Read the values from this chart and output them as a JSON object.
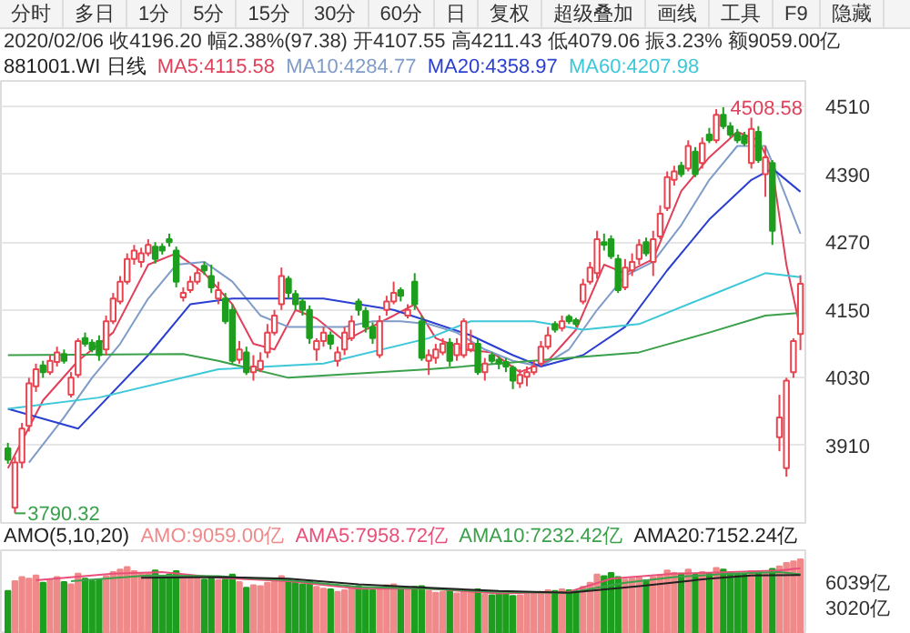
{
  "chart_data": [
    {
      "type": "other",
      "annotations": [
        "分时",
        "多日",
        "1分",
        "5分",
        "15分",
        "30分",
        "60分",
        "日",
        "复权",
        "超级叠加",
        "画线",
        "工具",
        "F9",
        "隐藏"
      ]
    },
    {
      "type": "candlestick",
      "title": "881001.WI 日线",
      "subtitle": "2020/02/06 收4196.20 幅2.38%(97.38) 开4107.55 高4211.43 低4079.06 振3.23% 额9059.00亿",
      "categories": [
        null,
        null,
        null,
        null,
        null,
        null,
        null,
        null,
        null,
        null,
        null,
        null,
        null,
        null,
        null,
        null,
        null,
        null,
        null,
        null,
        null,
        null,
        null,
        null,
        null,
        null,
        null,
        null,
        null,
        null,
        null,
        null,
        null,
        null,
        null,
        null,
        null,
        null,
        null,
        null,
        null,
        null,
        null,
        null,
        null,
        null,
        null,
        null,
        null,
        null,
        null,
        null,
        null,
        null,
        null,
        null,
        null,
        null,
        null,
        null,
        null,
        null,
        null,
        null,
        null,
        null,
        null,
        null,
        null,
        null,
        null,
        null,
        null,
        null,
        null,
        null,
        null,
        null,
        null,
        null,
        null,
        null,
        null,
        null,
        null,
        null,
        null,
        null,
        null,
        null,
        null,
        null,
        null,
        null,
        null,
        null,
        null,
        null,
        null,
        null,
        null,
        null,
        null,
        null,
        null,
        null,
        null,
        null,
        null,
        null,
        null,
        null,
        null,
        null
      ],
      "ohlc": [
        [
          3905,
          3915,
          3878,
          3885
        ],
        [
          3800,
          3890,
          3790.32,
          3880
        ],
        [
          3880,
          3950,
          3870,
          3940
        ],
        [
          3945,
          4030,
          3935,
          4020
        ],
        [
          4015,
          4055,
          4005,
          4045
        ],
        [
          4052,
          4060,
          4030,
          4040
        ],
        [
          4040,
          4070,
          4035,
          4060
        ],
        [
          4058,
          4085,
          4050,
          4075
        ],
        [
          4072,
          4080,
          4055,
          4060
        ],
        [
          4000,
          4040,
          3995,
          4030
        ],
        [
          4035,
          4100,
          4030,
          4095
        ],
        [
          4100,
          4110,
          4085,
          4090
        ],
        [
          4092,
          4098,
          4075,
          4080
        ],
        [
          4095,
          4105,
          4060,
          4070
        ],
        [
          4080,
          4140,
          4070,
          4130
        ],
        [
          4130,
          4180,
          4125,
          4170
        ],
        [
          4165,
          4210,
          4160,
          4200
        ],
        [
          4200,
          4250,
          4195,
          4240
        ],
        [
          4240,
          4265,
          4230,
          4255
        ],
        [
          4235,
          4260,
          4225,
          4250
        ],
        [
          4250,
          4275,
          4245,
          4265
        ],
        [
          4262,
          4270,
          4232,
          4240
        ],
        [
          4262,
          4268,
          4248,
          4255
        ],
        [
          4275,
          4285,
          4262,
          4270
        ],
        [
          4255,
          4262,
          4190,
          4200
        ],
        [
          4172,
          4190,
          4165,
          4180
        ],
        [
          4185,
          4210,
          4180,
          4200
        ],
        [
          4200,
          4225,
          4195,
          4215
        ],
        [
          4228,
          4235,
          4212,
          4220
        ],
        [
          4210,
          4230,
          4180,
          4190
        ],
        [
          4170,
          4200,
          4160,
          4185
        ],
        [
          4170,
          4180,
          4125,
          4130
        ],
        [
          4150,
          4160,
          4055,
          4060
        ],
        [
          4062,
          4095,
          4055,
          4080
        ],
        [
          4075,
          4085,
          4035,
          4040
        ],
        [
          4040,
          4070,
          4025,
          4050
        ],
        [
          4045,
          4075,
          4040,
          4060
        ],
        [
          4075,
          4125,
          4065,
          4110
        ],
        [
          4110,
          4150,
          4105,
          4140
        ],
        [
          4160,
          4225,
          4150,
          4210
        ],
        [
          4205,
          4210,
          4170,
          4180
        ],
        [
          4178,
          4185,
          4150,
          4160
        ],
        [
          4165,
          4170,
          4140,
          4150
        ],
        [
          4150,
          4158,
          4090,
          4100
        ],
        [
          4080,
          4100,
          4060,
          4095
        ],
        [
          4095,
          4120,
          4085,
          4110
        ],
        [
          4105,
          4112,
          4080,
          4090
        ],
        [
          4060,
          4085,
          4050,
          4075
        ],
        [
          4080,
          4120,
          4070,
          4110
        ],
        [
          4100,
          4140,
          4095,
          4130
        ],
        [
          4165,
          4170,
          4140,
          4150
        ],
        [
          4148,
          4155,
          4110,
          4120
        ],
        [
          4120,
          4128,
          4090,
          4100
        ],
        [
          4070,
          4140,
          4065,
          4130
        ],
        [
          4150,
          4175,
          4140,
          4165
        ],
        [
          4165,
          4200,
          4160,
          4180
        ],
        [
          4185,
          4190,
          4165,
          4175
        ],
        [
          4140,
          4160,
          4135,
          4150
        ],
        [
          4200,
          4215,
          4150,
          4160
        ],
        [
          4130,
          4140,
          4060,
          4065
        ],
        [
          4060,
          4080,
          4035,
          4070
        ],
        [
          4065,
          4090,
          4055,
          4080
        ],
        [
          4075,
          4100,
          4070,
          4090
        ],
        [
          4092,
          4100,
          4050,
          4060
        ],
        [
          4070,
          4100,
          4060,
          4090
        ],
        [
          4070,
          4135,
          4065,
          4130
        ],
        [
          4080,
          4115,
          4075,
          4090
        ],
        [
          4090,
          4098,
          4035,
          4040
        ],
        [
          4040,
          4065,
          4025,
          4055
        ],
        [
          4070,
          4075,
          4055,
          4060
        ],
        [
          4062,
          4068,
          4045,
          4055
        ],
        [
          4058,
          4065,
          4040,
          4050
        ],
        [
          4048,
          4052,
          4010,
          4025
        ],
        [
          4020,
          4045,
          4012,
          4035
        ],
        [
          4032,
          4050,
          4015,
          4040
        ],
        [
          4040,
          4060,
          4035,
          4050
        ],
        [
          4055,
          4095,
          4050,
          4085
        ],
        [
          4085,
          4120,
          4080,
          4105
        ],
        [
          4125,
          4130,
          4110,
          4115
        ],
        [
          4118,
          4140,
          4112,
          4130
        ],
        [
          4138,
          4142,
          4125,
          4130
        ],
        [
          4132,
          4136,
          4120,
          4125
        ],
        [
          4165,
          4205,
          4160,
          4195
        ],
        [
          4200,
          4235,
          4195,
          4225
        ],
        [
          4215,
          4290,
          4205,
          4275
        ],
        [
          4270,
          4285,
          4255,
          4265
        ],
        [
          4275,
          4282,
          4240,
          4245
        ],
        [
          4240,
          4248,
          4180,
          4185
        ],
        [
          4190,
          4240,
          4185,
          4225
        ],
        [
          4220,
          4250,
          4210,
          4235
        ],
        [
          4240,
          4275,
          4230,
          4265
        ],
        [
          4270,
          4278,
          4245,
          4250
        ],
        [
          4235,
          4290,
          4210,
          4275
        ],
        [
          4280,
          4335,
          4275,
          4320
        ],
        [
          4330,
          4395,
          4325,
          4385
        ],
        [
          4380,
          4405,
          4370,
          4395
        ],
        [
          4405,
          4412,
          4385,
          4390
        ],
        [
          4400,
          4450,
          4395,
          4440
        ],
        [
          4430,
          4438,
          4385,
          4390
        ],
        [
          4410,
          4455,
          4400,
          4445
        ],
        [
          4460,
          4472,
          4445,
          4450
        ],
        [
          4450,
          4505,
          4445,
          4495
        ],
        [
          4495,
          4508.58,
          4470,
          4475
        ],
        [
          4475,
          4482,
          4455,
          4460
        ],
        [
          4462,
          4470,
          4445,
          4450
        ],
        [
          4458,
          4465,
          4440,
          4445
        ],
        [
          4410,
          4490,
          4400,
          4470
        ],
        [
          4465,
          4475,
          4410,
          4415
        ],
        [
          4390,
          4440,
          4350,
          4420
        ],
        [
          4410,
          4415,
          4265,
          4290
        ],
        [
          3925,
          4000,
          3900,
          3960
        ],
        [
          3870,
          4030,
          3855,
          4025
        ],
        [
          4040,
          4100,
          4030,
          4095
        ],
        [
          4107.55,
          4211.43,
          4079.06,
          4196.2
        ]
      ],
      "colors": [
        "#1e9e1e",
        "#e8434f",
        "#e8434f",
        "#e8434f",
        "#e8434f",
        "#1e9e1e",
        "#e8434f",
        "#e8434f",
        "#1e9e1e",
        "#e8434f",
        "#e8434f",
        "#1e9e1e",
        "#1e9e1e",
        "#1e9e1e",
        "#e8434f",
        "#e8434f",
        "#e8434f",
        "#e8434f",
        "#e8434f",
        "#e8434f",
        "#e8434f",
        "#1e9e1e",
        "#1e9e1e",
        "#1e9e1e",
        "#1e9e1e",
        "#e8434f",
        "#e8434f",
        "#e8434f",
        "#1e9e1e",
        "#1e9e1e",
        "#e8434f",
        "#1e9e1e",
        "#1e9e1e",
        "#e8434f",
        "#1e9e1e",
        "#e8434f",
        "#e8434f",
        "#e8434f",
        "#e8434f",
        "#e8434f",
        "#1e9e1e",
        "#1e9e1e",
        "#1e9e1e",
        "#1e9e1e",
        "#e8434f",
        "#e8434f",
        "#1e9e1e",
        "#e8434f",
        "#e8434f",
        "#e8434f",
        "#1e9e1e",
        "#1e9e1e",
        "#1e9e1e",
        "#e8434f",
        "#e8434f",
        "#e8434f",
        "#1e9e1e",
        "#e8434f",
        "#1e9e1e",
        "#1e9e1e",
        "#e8434f",
        "#e8434f",
        "#e8434f",
        "#1e9e1e",
        "#e8434f",
        "#e8434f",
        "#e8434f",
        "#1e9e1e",
        "#e8434f",
        "#1e9e1e",
        "#1e9e1e",
        "#1e9e1e",
        "#1e9e1e",
        "#e8434f",
        "#e8434f",
        "#e8434f",
        "#e8434f",
        "#e8434f",
        "#1e9e1e",
        "#e8434f",
        "#1e9e1e",
        "#1e9e1e",
        "#e8434f",
        "#e8434f",
        "#e8434f",
        "#1e9e1e",
        "#1e9e1e",
        "#1e9e1e",
        "#e8434f",
        "#e8434f",
        "#e8434f",
        "#1e9e1e",
        "#e8434f",
        "#e8434f",
        "#e8434f",
        "#e8434f",
        "#1e9e1e",
        "#e8434f",
        "#1e9e1e",
        "#e8434f",
        "#1e9e1e",
        "#e8434f",
        "#1e9e1e",
        "#1e9e1e",
        "#1e9e1e",
        "#1e9e1e",
        "#e8434f",
        "#1e9e1e",
        "#e8434f",
        "#1e9e1e",
        "#e8434f",
        "#e8434f",
        "#e8434f",
        "#e8434f"
      ],
      "series": [
        {
          "name": "MA5:4115.58",
          "type": "line",
          "color": "#e0405a",
          "values": [
            3870,
            null,
            null,
            null,
            null,
            3990,
            null,
            null,
            null,
            null,
            4060,
            null,
            null,
            null,
            null,
            4110,
            null,
            null,
            null,
            null,
            4230,
            null,
            null,
            null,
            4250,
            null,
            null,
            null,
            4215,
            null,
            null,
            null,
            4160,
            null,
            null,
            4090,
            null,
            null,
            4080,
            null,
            null,
            4150,
            null,
            null,
            4135,
            null,
            null,
            null,
            4095,
            null,
            null,
            4115,
            null,
            null,
            null,
            4140,
            null,
            null,
            4160,
            null,
            null,
            4100,
            null,
            null,
            null,
            4080,
            null,
            null,
            null,
            4075,
            null,
            null,
            null,
            4040,
            null,
            null,
            null,
            4060,
            null,
            null,
            null,
            4115,
            null,
            null,
            null,
            4230,
            null,
            null,
            4215,
            null,
            null,
            null,
            4240,
            null,
            null,
            null,
            4360,
            null,
            null,
            null,
            4420,
            null,
            null,
            null,
            4465,
            null,
            null,
            4450,
            null,
            4400,
            null,
            4230,
            null,
            4115.58
          ]
        },
        {
          "name": "MA10:4284.77",
          "type": "line",
          "color": "#7f9cc8",
          "values": [
            null,
            null,
            null,
            3880,
            null,
            null,
            null,
            null,
            3960,
            null,
            null,
            null,
            4030,
            null,
            null,
            null,
            4090,
            null,
            null,
            null,
            4170,
            null,
            null,
            null,
            4230,
            null,
            null,
            null,
            4235,
            null,
            null,
            null,
            4200,
            null,
            null,
            null,
            4140,
            null,
            null,
            null,
            4120,
            null,
            null,
            null,
            4120,
            null,
            null,
            null,
            4120,
            null,
            null,
            null,
            4130,
            null,
            null,
            null,
            4130,
            null,
            null,
            null,
            4125,
            null,
            null,
            null,
            4110,
            null,
            null,
            null,
            4080,
            null,
            null,
            null,
            4060,
            null,
            null,
            null,
            4050,
            null,
            null,
            null,
            4080,
            null,
            null,
            null,
            4150,
            null,
            null,
            null,
            4210,
            null,
            null,
            null,
            4235,
            null,
            null,
            null,
            4300,
            null,
            null,
            null,
            4380,
            null,
            null,
            null,
            4440,
            null,
            null,
            null,
            4440,
            null,
            4380,
            null,
            null,
            4284.77
          ]
        },
        {
          "name": "MA20:4358.97",
          "type": "line",
          "color": "#2a3fd0",
          "values": [
            3975,
            null,
            null,
            null,
            null,
            null,
            null,
            null,
            null,
            null,
            3940,
            null,
            null,
            null,
            null,
            null,
            null,
            null,
            null,
            null,
            4070,
            null,
            null,
            null,
            null,
            null,
            4160,
            null,
            null,
            null,
            null,
            null,
            4170,
            null,
            null,
            null,
            null,
            null,
            null,
            null,
            null,
            null,
            null,
            null,
            null,
            4170,
            null,
            null,
            null,
            null,
            null,
            null,
            null,
            null,
            null,
            4150,
            null,
            null,
            null,
            null,
            4130,
            null,
            null,
            null,
            null,
            null,
            4105,
            null,
            null,
            null,
            null,
            null,
            4070,
            null,
            null,
            null,
            4050,
            null,
            null,
            null,
            null,
            null,
            4070,
            null,
            null,
            null,
            null,
            null,
            4120,
            null,
            null,
            null,
            null,
            null,
            4220,
            null,
            null,
            null,
            null,
            null,
            4310,
            null,
            null,
            null,
            null,
            null,
            4380,
            null,
            null,
            4400,
            null,
            null,
            null,
            4358.97
          ]
        },
        {
          "name": "MA60:4207.98",
          "type": "line",
          "color": "#3cc8d8",
          "values": [
            3975,
            null,
            null,
            null,
            null,
            null,
            null,
            null,
            null,
            null,
            null,
            null,
            null,
            3995,
            null,
            null,
            null,
            null,
            null,
            null,
            null,
            null,
            null,
            null,
            null,
            null,
            null,
            null,
            null,
            null,
            4045,
            null,
            null,
            null,
            null,
            null,
            null,
            null,
            null,
            null,
            null,
            null,
            null,
            null,
            null,
            4055,
            null,
            null,
            null,
            null,
            null,
            null,
            null,
            null,
            null,
            null,
            null,
            null,
            null,
            null,
            4100,
            null,
            null,
            null,
            null,
            null,
            4130,
            null,
            null,
            null,
            null,
            null,
            null,
            null,
            null,
            4130,
            null,
            null,
            null,
            null,
            null,
            null,
            4115,
            null,
            null,
            null,
            null,
            null,
            null,
            null,
            4125,
            null,
            null,
            null,
            null,
            null,
            null,
            null,
            null,
            null,
            4175,
            null,
            null,
            null,
            null,
            null,
            null,
            null,
            4215,
            null,
            null,
            null,
            null,
            4207.98
          ]
        },
        {
          "type": "line",
          "color": "#3aa04a",
          "values": [
            4070,
            null,
            null,
            null,
            null,
            null,
            null,
            null,
            null,
            null,
            null,
            null,
            null,
            null,
            null,
            null,
            null,
            null,
            null,
            null,
            null,
            null,
            null,
            null,
            null,
            4072,
            null,
            null,
            null,
            null,
            4060,
            null,
            null,
            null,
            null,
            null,
            null,
            null,
            null,
            null,
            4030,
            null,
            null,
            null,
            null,
            null,
            null,
            null,
            null,
            null,
            null,
            null,
            null,
            null,
            null,
            null,
            null,
            null,
            null,
            null,
            4045,
            null,
            null,
            null,
            null,
            null,
            null,
            null,
            null,
            null,
            4055,
            null,
            null,
            null,
            null,
            null,
            null,
            null,
            null,
            null,
            4065,
            null,
            null,
            null,
            null,
            null,
            null,
            null,
            null,
            null,
            4075,
            null,
            null,
            null,
            null,
            null,
            null,
            null,
            null,
            null,
            4110,
            null,
            null,
            null,
            null,
            null,
            null,
            null,
            4140,
            null,
            null,
            null,
            null,
            4145
          ]
        }
      ],
      "ylim": [
        3770,
        4555
      ],
      "yticks": [
        3910,
        4030,
        4150,
        4270,
        4390,
        4510
      ],
      "grid": "y",
      "legend": "top left",
      "annotations": [
        "4508.58",
        "3790.32"
      ]
    },
    {
      "type": "bar",
      "title": "AMO(5,10,20)",
      "categories": [
        null,
        null,
        null,
        null,
        null,
        null,
        null,
        null,
        null,
        null,
        null,
        null,
        null,
        null,
        null,
        null,
        null,
        null,
        null,
        null,
        null,
        null,
        null,
        null,
        null,
        null,
        null,
        null,
        null,
        null,
        null,
        null,
        null,
        null,
        null,
        null,
        null,
        null,
        null,
        null,
        null,
        null,
        null,
        null,
        null,
        null,
        null,
        null,
        null,
        null,
        null,
        null,
        null,
        null,
        null,
        null,
        null,
        null,
        null,
        null,
        null,
        null,
        null,
        null,
        null,
        null,
        null,
        null,
        null,
        null,
        null,
        null,
        null,
        null,
        null,
        null,
        null,
        null,
        null,
        null,
        null,
        null,
        null,
        null,
        null,
        null,
        null,
        null,
        null,
        null,
        null,
        null,
        null,
        null,
        null,
        null,
        null,
        null,
        null,
        null,
        null,
        null,
        null,
        null,
        null,
        null,
        null,
        null,
        null,
        null,
        null,
        null,
        null,
        null
      ],
      "series": [
        {
          "name": "AMO:9059.00亿",
          "type": "bar",
          "color": "#f08a8a",
          "values": [
            5200,
            6400,
            6900,
            6700,
            7100,
            6200,
            6500,
            6900,
            6300,
            6000,
            7300,
            6700,
            6400,
            6600,
            7000,
            7500,
            7800,
            8100,
            7600,
            7300,
            7400,
            7700,
            6900,
            7200,
            7600,
            6800,
            6900,
            7000,
            6600,
            6800,
            6500,
            6600,
            7200,
            6300,
            5600,
            5900,
            5800,
            6200,
            6400,
            7000,
            6600,
            6200,
            6000,
            6400,
            5700,
            5500,
            5400,
            5100,
            5300,
            5600,
            5800,
            5500,
            5300,
            5600,
            5900,
            6000,
            5600,
            5400,
            5700,
            5800,
            5200,
            5000,
            5100,
            5300,
            4900,
            5200,
            5100,
            5400,
            4800,
            4700,
            4900,
            4800,
            4600,
            4700,
            4800,
            4900,
            5100,
            5300,
            5200,
            5400,
            5300,
            5200,
            5700,
            6200,
            7200,
            7000,
            7400,
            6900,
            6600,
            6700,
            6800,
            6500,
            6900,
            7100,
            7700,
            7400,
            7300,
            7800,
            7200,
            7500,
            7300,
            8000,
            7800,
            7400,
            7300,
            7200,
            7600,
            7500,
            7400,
            7900,
            8200,
            8600,
            8800,
            9059
          ],
          "colors": [
            "#1e9e1e",
            "#f08a8a",
            "#f08a8a",
            "#f08a8a",
            "#f08a8a",
            "#1e9e1e",
            "#f08a8a",
            "#f08a8a",
            "#1e9e1e",
            "#f08a8a",
            "#f08a8a",
            "#1e9e1e",
            "#1e9e1e",
            "#1e9e1e",
            "#f08a8a",
            "#f08a8a",
            "#f08a8a",
            "#f08a8a",
            "#f08a8a",
            "#f08a8a",
            "#f08a8a",
            "#1e9e1e",
            "#1e9e1e",
            "#1e9e1e",
            "#1e9e1e",
            "#f08a8a",
            "#f08a8a",
            "#f08a8a",
            "#1e9e1e",
            "#1e9e1e",
            "#f08a8a",
            "#1e9e1e",
            "#1e9e1e",
            "#f08a8a",
            "#1e9e1e",
            "#f08a8a",
            "#f08a8a",
            "#f08a8a",
            "#f08a8a",
            "#f08a8a",
            "#1e9e1e",
            "#1e9e1e",
            "#1e9e1e",
            "#1e9e1e",
            "#f08a8a",
            "#f08a8a",
            "#1e9e1e",
            "#f08a8a",
            "#f08a8a",
            "#f08a8a",
            "#1e9e1e",
            "#1e9e1e",
            "#1e9e1e",
            "#f08a8a",
            "#f08a8a",
            "#f08a8a",
            "#1e9e1e",
            "#f08a8a",
            "#1e9e1e",
            "#1e9e1e",
            "#f08a8a",
            "#f08a8a",
            "#f08a8a",
            "#1e9e1e",
            "#f08a8a",
            "#f08a8a",
            "#f08a8a",
            "#1e9e1e",
            "#f08a8a",
            "#1e9e1e",
            "#1e9e1e",
            "#1e9e1e",
            "#1e9e1e",
            "#f08a8a",
            "#f08a8a",
            "#f08a8a",
            "#f08a8a",
            "#f08a8a",
            "#1e9e1e",
            "#f08a8a",
            "#1e9e1e",
            "#1e9e1e",
            "#f08a8a",
            "#f08a8a",
            "#f08a8a",
            "#1e9e1e",
            "#1e9e1e",
            "#1e9e1e",
            "#f08a8a",
            "#f08a8a",
            "#f08a8a",
            "#1e9e1e",
            "#f08a8a",
            "#f08a8a",
            "#f08a8a",
            "#f08a8a",
            "#1e9e1e",
            "#f08a8a",
            "#1e9e1e",
            "#f08a8a",
            "#1e9e1e",
            "#f08a8a",
            "#1e9e1e",
            "#1e9e1e",
            "#1e9e1e",
            "#1e9e1e",
            "#f08a8a",
            "#1e9e1e",
            "#f08a8a",
            "#1e9e1e",
            "#f08a8a",
            "#f08a8a",
            "#f08a8a",
            "#f08a8a"
          ]
        },
        {
          "name": "AMA5:7958.72亿",
          "type": "line",
          "color": "#e8507a",
          "values": [
            null,
            null,
            null,
            null,
            6500,
            null,
            null,
            null,
            null,
            null,
            null,
            null,
            null,
            null,
            null,
            7300,
            null,
            null,
            null,
            null,
            null,
            null,
            7500,
            null,
            null,
            null,
            null,
            null,
            null,
            null,
            6800,
            null,
            null,
            null,
            null,
            null,
            null,
            null,
            null,
            null,
            6400,
            null,
            null,
            null,
            null,
            null,
            null,
            null,
            null,
            null,
            5500,
            null,
            null,
            null,
            null,
            null,
            null,
            null,
            null,
            null,
            5500,
            null,
            null,
            null,
            null,
            null,
            null,
            null,
            null,
            null,
            4900,
            null,
            null,
            null,
            null,
            null,
            null,
            null,
            null,
            null,
            5100,
            null,
            null,
            null,
            null,
            null,
            6700,
            null,
            null,
            null,
            null,
            null,
            null,
            null,
            null,
            7300,
            null,
            null,
            null,
            null,
            null,
            null,
            null,
            7500,
            null,
            null,
            null,
            null,
            null,
            null,
            7700,
            null,
            null,
            7958.72
          ]
        },
        {
          "name": "AMA10:7232.42亿",
          "type": "line",
          "color": "#3aa04a",
          "values": [
            null,
            null,
            null,
            null,
            null,
            null,
            null,
            null,
            null,
            6400,
            null,
            null,
            null,
            null,
            null,
            null,
            null,
            null,
            null,
            null,
            7100,
            null,
            null,
            null,
            null,
            null,
            null,
            null,
            null,
            null,
            7000,
            null,
            null,
            null,
            null,
            null,
            null,
            null,
            null,
            null,
            6500,
            null,
            null,
            null,
            null,
            null,
            null,
            null,
            null,
            null,
            5700,
            null,
            null,
            null,
            null,
            null,
            null,
            null,
            null,
            null,
            5500,
            null,
            null,
            null,
            null,
            null,
            null,
            null,
            null,
            null,
            5100,
            null,
            null,
            null,
            null,
            null,
            null,
            null,
            null,
            null,
            5000,
            null,
            null,
            null,
            null,
            null,
            null,
            null,
            6200,
            null,
            null,
            null,
            null,
            null,
            null,
            6900,
            null,
            null,
            null,
            null,
            null,
            null,
            null,
            7300,
            null,
            null,
            null,
            null,
            null,
            null,
            7500,
            null,
            null,
            7232.42
          ]
        },
        {
          "name": "AMA20:7152.24亿",
          "type": "line",
          "color": "#222222",
          "values": [
            null,
            null,
            null,
            null,
            null,
            null,
            null,
            null,
            null,
            null,
            null,
            null,
            null,
            null,
            null,
            null,
            null,
            null,
            null,
            6800,
            null,
            null,
            null,
            null,
            null,
            null,
            null,
            null,
            null,
            null,
            6900,
            null,
            null,
            null,
            null,
            null,
            null,
            null,
            null,
            null,
            6700,
            null,
            null,
            null,
            null,
            null,
            null,
            null,
            null,
            null,
            6000,
            null,
            null,
            null,
            null,
            null,
            null,
            null,
            null,
            null,
            5600,
            null,
            null,
            null,
            null,
            null,
            null,
            null,
            null,
            null,
            5200,
            null,
            null,
            null,
            null,
            null,
            null,
            null,
            null,
            null,
            5000,
            null,
            null,
            null,
            null,
            null,
            null,
            null,
            null,
            null,
            5800,
            null,
            null,
            null,
            null,
            null,
            null,
            null,
            null,
            null,
            6700,
            null,
            null,
            null,
            null,
            null,
            7100,
            null,
            null,
            null,
            null,
            null,
            null,
            7152.24
          ]
        }
      ],
      "ylim": [
        0,
        10150
      ],
      "yticks": [
        {
          "value": 6039,
          "label": "6039亿"
        },
        {
          "value": 3020,
          "label": "3020亿"
        }
      ],
      "legend": "top"
    }
  ]
}
